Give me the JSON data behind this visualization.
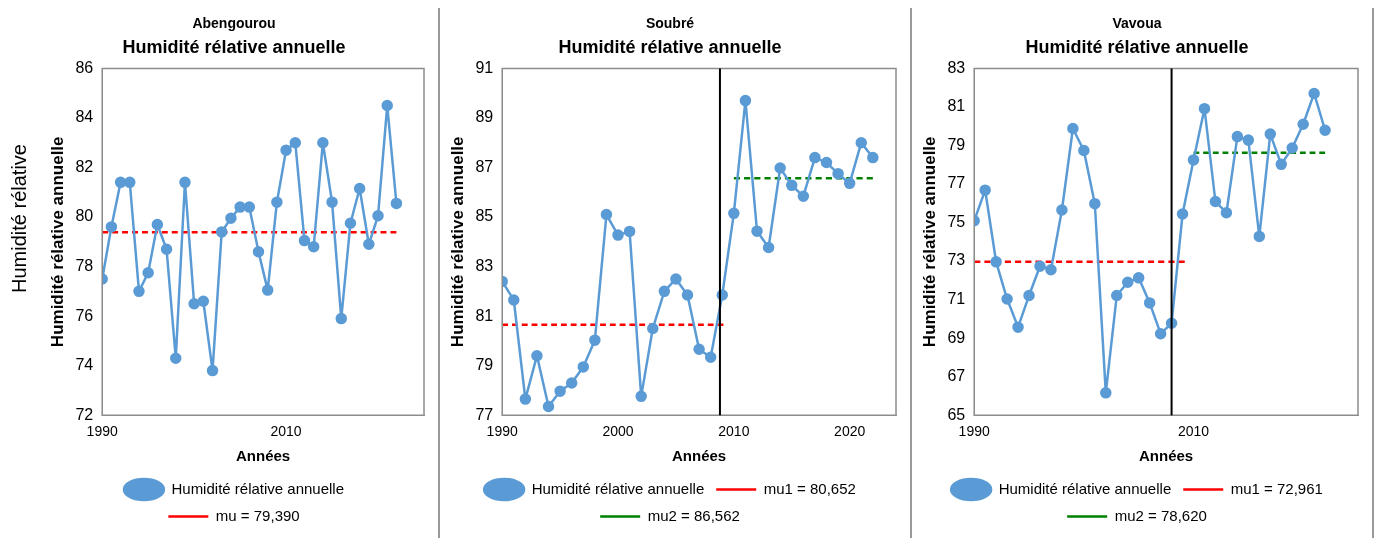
{
  "chart_data": [
    {
      "type": "line",
      "title": "Abengourou",
      "subtitle": "Humidité rélative annuelle",
      "xlabel": "Années",
      "ylabel": "Humidité rélative annuelle",
      "annotations": [
        "Humidité rélative"
      ],
      "legend": "bottom",
      "xlim": [
        1990,
        2025
      ],
      "xticks": [
        1990,
        2010
      ],
      "ylim": [
        72,
        86
      ],
      "yticks": [
        72,
        74,
        76,
        78,
        80,
        82,
        84,
        86
      ],
      "x": [
        1990,
        1991,
        1992,
        1993,
        1994,
        1995,
        1996,
        1997,
        1998,
        1999,
        2000,
        2001,
        2002,
        2003,
        2004,
        2005,
        2006,
        2007,
        2008,
        2009,
        2010,
        2011,
        2012,
        2013,
        2014,
        2015,
        2016,
        2017,
        2018,
        2019,
        2020,
        2021,
        2022
      ],
      "series": [
        {
          "name": "Humidité rélative annuelle",
          "color": "#5b9bd5",
          "marker": "circle",
          "line_style": "solid",
          "values": [
            77.5,
            79.6,
            81.4,
            81.4,
            77.0,
            77.75,
            79.7,
            78.7,
            74.3,
            81.4,
            76.5,
            76.6,
            73.8,
            79.4,
            79.95,
            80.4,
            80.4,
            78.6,
            77.05,
            80.6,
            82.7,
            83.0,
            79.05,
            78.8,
            83.0,
            80.6,
            75.9,
            79.75,
            81.15,
            78.9,
            80.05,
            84.5,
            80.55
          ]
        },
        {
          "name": "mu = 79,390",
          "color": "#ff0000",
          "marker": "none",
          "line_style": "dashed",
          "x": [
            1990,
            2022
          ],
          "values": [
            79.39,
            79.39
          ]
        }
      ]
    },
    {
      "type": "line",
      "title": "Soubré",
      "subtitle": "Humidité rélative annuelle",
      "xlabel": "Années",
      "ylabel": "Humidité rélative annuelle",
      "legend": "bottom",
      "xlim": [
        1990,
        2024
      ],
      "xticks": [
        1990,
        2000,
        2010,
        2020
      ],
      "ylim": [
        77,
        91
      ],
      "yticks": [
        77,
        79,
        81,
        83,
        85,
        87,
        89,
        91
      ],
      "x": [
        1990,
        1991,
        1992,
        1993,
        1994,
        1995,
        1996,
        1997,
        1998,
        1999,
        2000,
        2001,
        2002,
        2003,
        2004,
        2005,
        2006,
        2007,
        2008,
        2009,
        2010,
        2011,
        2012,
        2013,
        2014,
        2015,
        2016,
        2017,
        2018,
        2019,
        2020,
        2021,
        2022
      ],
      "ref_lines": [
        {
          "axis": "x",
          "value": 2008.8,
          "color": "#000000"
        }
      ],
      "series": [
        {
          "name": "Humidité rélative annuelle",
          "color": "#5b9bd5",
          "marker": "circle",
          "line_style": "solid",
          "values": [
            82.4,
            81.65,
            77.65,
            79.4,
            77.35,
            77.97,
            78.3,
            78.95,
            80.03,
            85.1,
            84.27,
            84.42,
            77.76,
            80.5,
            82.0,
            82.5,
            81.85,
            79.66,
            79.34,
            81.85,
            85.15,
            89.7,
            84.43,
            83.77,
            86.98,
            86.28,
            85.84,
            87.4,
            87.2,
            86.75,
            86.36,
            88.0,
            87.4
          ]
        },
        {
          "name": "mu1 = 80,652",
          "color": "#ff0000",
          "marker": "none",
          "line_style": "dashed",
          "x": [
            1990,
            2009.1
          ],
          "values": [
            80.652,
            80.652
          ]
        },
        {
          "name": "mu2 = 86,562",
          "color": "#008000",
          "marker": "none",
          "line_style": "dashed",
          "x": [
            2010,
            2022
          ],
          "values": [
            86.562,
            86.562
          ]
        }
      ]
    },
    {
      "type": "line",
      "title": "Vavoua",
      "subtitle": "Humidité rélative annuelle",
      "xlabel": "Années",
      "ylabel": "Humidité rélative annuelle",
      "legend": "bottom",
      "xlim": [
        1990,
        2025
      ],
      "xticks": [
        1990,
        2010
      ],
      "ylim": [
        65,
        83
      ],
      "yticks": [
        65,
        67,
        69,
        71,
        73,
        75,
        77,
        79,
        81,
        83
      ],
      "x": [
        1990,
        1991,
        1992,
        1993,
        1994,
        1995,
        1996,
        1997,
        1998,
        1999,
        2000,
        2001,
        2002,
        2003,
        2004,
        2005,
        2006,
        2007,
        2008,
        2009,
        2010,
        2011,
        2012,
        2013,
        2014,
        2015,
        2016,
        2017,
        2018,
        2019,
        2020,
        2021,
        2022
      ],
      "ref_lines": [
        {
          "axis": "x",
          "value": 2008,
          "color": "#000000"
        }
      ],
      "series": [
        {
          "name": "Humidité rélative annuelle",
          "color": "#5b9bd5",
          "marker": "circle",
          "line_style": "solid",
          "values": [
            75.09,
            76.68,
            72.96,
            71.03,
            69.57,
            71.21,
            72.73,
            72.55,
            75.65,
            79.88,
            78.74,
            75.98,
            66.16,
            71.21,
            71.9,
            72.13,
            70.83,
            69.23,
            69.77,
            75.44,
            78.25,
            80.91,
            76.09,
            75.51,
            79.46,
            79.28,
            74.28,
            79.59,
            78.02,
            78.87,
            80.1,
            81.7,
            79.79
          ]
        },
        {
          "name": "mu1 = 72,961",
          "color": "#ff0000",
          "marker": "none",
          "line_style": "dashed",
          "x": [
            1990,
            2009.2
          ],
          "values": [
            72.961,
            72.961
          ]
        },
        {
          "name": "mu2 = 78,620",
          "color": "#008000",
          "marker": "none",
          "line_style": "dashed",
          "x": [
            2010,
            2022
          ],
          "values": [
            78.62,
            78.62
          ]
        }
      ]
    }
  ]
}
